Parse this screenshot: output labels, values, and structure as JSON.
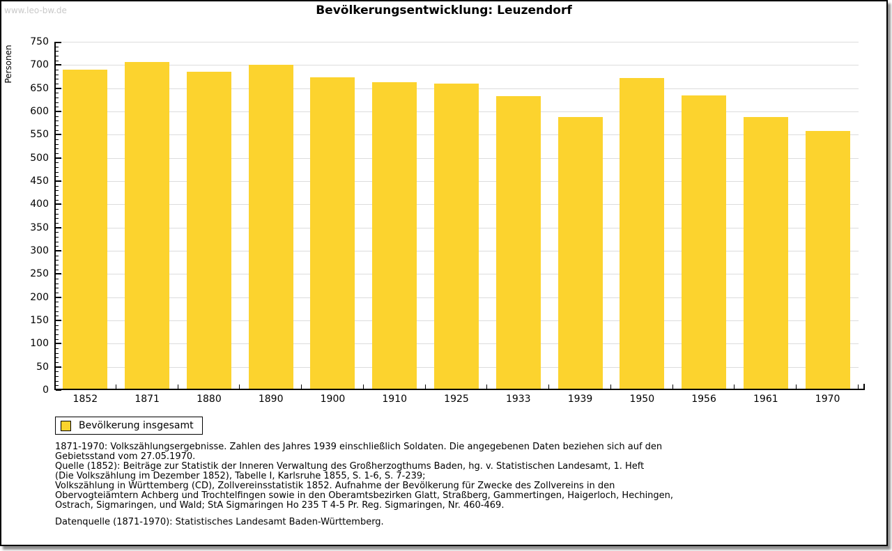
{
  "watermark": "www.leo-bw.de",
  "chart_data": {
    "type": "bar",
    "title": "Bevölkerungsentwicklung: Leuzendorf",
    "xlabel": "",
    "ylabel": "Personen",
    "categories": [
      "1852",
      "1871",
      "1880",
      "1890",
      "1900",
      "1910",
      "1925",
      "1933",
      "1939",
      "1950",
      "1956",
      "1961",
      "1970"
    ],
    "values": [
      690,
      707,
      686,
      700,
      673,
      662,
      660,
      633,
      588,
      671,
      634,
      588,
      558
    ],
    "ylim": [
      0,
      750
    ],
    "ytick_step": 50,
    "ytick_minor": 10,
    "grid": true,
    "bar_color": "#fcd32e",
    "legend": {
      "label": "Bevölkerung insgesamt",
      "position": "bottom-left"
    }
  },
  "colors": {
    "bar": "#fcd32e",
    "gridline": "#dcdcdc",
    "axis": "#000000",
    "watermark": "#c9c9c9",
    "frame_border": "#000000",
    "frame_shadow": "#8f8f8f"
  },
  "footnotes": {
    "lines": [
      "1871-1970: Volkszählungsergebnisse. Zahlen des Jahres 1939 einschließlich Soldaten. Die angegebenen Daten beziehen sich auf den",
      "Gebietsstand vom 27.05.1970.",
      "Quelle (1852): Beiträge zur Statistik der Inneren Verwaltung des Großherzogthums Baden, hg. v. Statistischen Landesamt, 1. Heft",
      "(Die Volkszählung im Dezember 1852), Tabelle I, Karlsruhe 1855, S. 1-6, S. 7-239;",
      "Volkszählung in Württemberg (CD), Zollvereinsstatistik 1852. Aufnahme der Bevölkerung für Zwecke des Zollvereins in den",
      "Obervogteiämtern Achberg und Trochtelfingen sowie in den Oberamtsbezirken Glatt, Straßberg, Gammertingen, Haigerloch, Hechingen,",
      "Ostrach, Sigmaringen, und Wald; StA Sigmaringen Ho 235 T 4-5 Pr. Reg. Sigmaringen, Nr. 460-469."
    ],
    "datasource": "Datenquelle (1871-1970): Statistisches Landesamt Baden-Württemberg."
  }
}
